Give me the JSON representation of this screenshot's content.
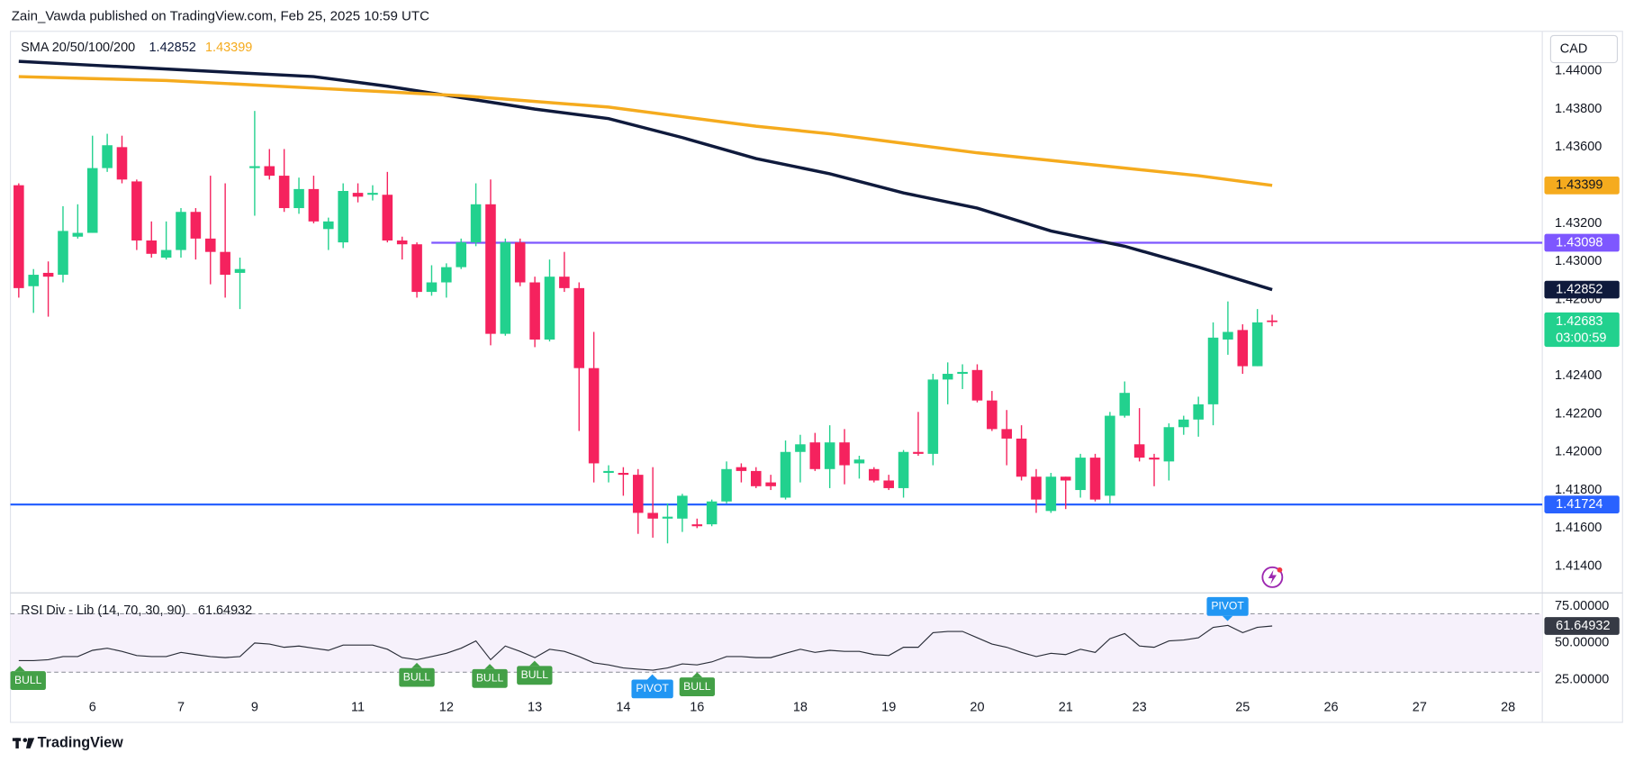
{
  "header": {
    "title": "Zain_Vawda published on TradingView.com, Feb 25, 2025 10:59 UTC",
    "brand": "TradingView"
  },
  "chart_data": [
    {
      "type": "candlestick",
      "currency": "CAD",
      "legend_title": "SMA 20/50/100/200",
      "countdown": "03:00:59",
      "up_color": "#22d18e",
      "down_color": "#f5225e",
      "categories": [
        null,
        null,
        null,
        null,
        null,
        "6",
        null,
        null,
        null,
        null,
        null,
        "7",
        null,
        null,
        null,
        null,
        "9",
        null,
        null,
        null,
        null,
        null,
        null,
        "11",
        null,
        null,
        null,
        null,
        null,
        "12",
        null,
        null,
        null,
        null,
        null,
        "13",
        null,
        null,
        null,
        null,
        null,
        "14",
        null,
        null,
        null,
        null,
        "16",
        null,
        null,
        null,
        null,
        null,
        null,
        "18",
        null,
        null,
        null,
        null,
        null,
        "19",
        null,
        null,
        null,
        null,
        null,
        "20",
        null,
        null,
        null,
        null,
        null,
        "21",
        null,
        null,
        null,
        null,
        "23",
        null,
        null,
        null,
        null,
        null,
        null,
        "25",
        null,
        null,
        null,
        null,
        null,
        "26",
        null,
        null,
        null,
        null,
        null,
        "27",
        null,
        null,
        null,
        null,
        null,
        "28"
      ],
      "open": [
        1.434,
        1.4287,
        1.4294,
        1.4293,
        1.4313,
        1.4315,
        1.4349,
        1.436,
        1.4342,
        1.4311,
        1.4302,
        1.4306,
        1.4326,
        1.4312,
        1.4305,
        1.4294,
        1.4349,
        1.435,
        1.4345,
        1.4328,
        1.4338,
        1.4317,
        1.431,
        1.4336,
        1.4335,
        1.4335,
        1.4311,
        1.4309,
        1.4284,
        1.4289,
        1.4297,
        1.431,
        1.433,
        1.4262,
        1.431,
        1.4289,
        1.4259,
        1.4292,
        1.4286,
        1.4244,
        1.4189,
        1.4189,
        1.4188,
        1.4168,
        1.4165,
        1.4165,
        1.4162,
        1.4162,
        1.4174,
        1.4192,
        1.419,
        1.4184,
        1.4176,
        1.42,
        1.4205,
        1.4191,
        1.4205,
        1.4194,
        1.4191,
        1.4185,
        1.4181,
        1.42,
        1.4199,
        1.4238,
        1.4241,
        1.4243,
        1.4227,
        1.4212,
        1.4207,
        1.4187,
        1.4169,
        1.4187,
        1.418,
        1.4197,
        1.4177,
        1.4219,
        1.4204,
        1.4197,
        1.4195,
        1.4213,
        1.4217,
        1.4225,
        1.4259,
        1.4264,
        1.4245,
        1.4269,
        null,
        null,
        null,
        null,
        null,
        null,
        null,
        null,
        null,
        null,
        null,
        null,
        null,
        null,
        null,
        null
      ],
      "high": [
        1.4341,
        1.4296,
        1.43,
        1.4329,
        1.433,
        1.4366,
        1.4367,
        1.4366,
        1.4343,
        1.4321,
        1.4321,
        1.4328,
        1.4328,
        1.4345,
        1.4341,
        1.4302,
        1.4379,
        1.4359,
        1.4359,
        1.4344,
        1.4345,
        1.4323,
        1.4341,
        1.4341,
        1.434,
        1.4347,
        1.4313,
        1.431,
        1.4298,
        1.4299,
        1.4312,
        1.4341,
        1.4343,
        1.4312,
        1.4312,
        1.4292,
        1.4301,
        1.4305,
        1.4289,
        1.4263,
        1.4193,
        1.4192,
        1.4191,
        1.4192,
        1.4173,
        1.4178,
        1.4165,
        1.4175,
        1.4195,
        1.4194,
        1.4192,
        1.4188,
        1.4206,
        1.4209,
        1.421,
        1.4214,
        1.4212,
        1.4198,
        1.4192,
        1.4188,
        1.4201,
        1.4221,
        1.4241,
        1.4247,
        1.4246,
        1.4246,
        1.4232,
        1.4222,
        1.4214,
        1.4191,
        1.4189,
        1.4187,
        1.4199,
        1.4199,
        1.4221,
        1.4237,
        1.4223,
        1.4199,
        1.4215,
        1.4219,
        1.4229,
        1.4268,
        1.4279,
        1.4267,
        1.4275,
        1.4272,
        null,
        null,
        null,
        null,
        null,
        null,
        null,
        null,
        null,
        null,
        null,
        null,
        null,
        null,
        null,
        null
      ],
      "low": [
        1.4281,
        1.4273,
        1.4271,
        1.4289,
        1.4312,
        1.4315,
        1.4347,
        1.4341,
        1.4306,
        1.4302,
        1.4301,
        1.4302,
        1.4301,
        1.4288,
        1.4281,
        1.4275,
        1.4324,
        1.4343,
        1.4326,
        1.4325,
        1.432,
        1.4306,
        1.4307,
        1.4331,
        1.4332,
        1.431,
        1.4301,
        1.4281,
        1.4282,
        1.4281,
        1.4296,
        1.4308,
        1.4256,
        1.4261,
        1.4287,
        1.4255,
        1.4258,
        1.4284,
        1.4211,
        1.4184,
        1.4184,
        1.4177,
        1.4157,
        1.4155,
        1.4152,
        1.4158,
        1.416,
        1.4161,
        1.4173,
        1.4184,
        1.4181,
        1.418,
        1.4175,
        1.4184,
        1.419,
        1.4181,
        1.4183,
        1.4186,
        1.4184,
        1.418,
        1.4176,
        1.4198,
        1.4193,
        1.4225,
        1.4233,
        1.4226,
        1.4211,
        1.4193,
        1.4185,
        1.4168,
        1.4168,
        1.417,
        1.4176,
        1.4174,
        1.4173,
        1.4218,
        1.4195,
        1.4182,
        1.4185,
        1.4209,
        1.4208,
        1.4214,
        1.4251,
        1.4241,
        1.4245,
        1.4266,
        null,
        null,
        null,
        null,
        null,
        null,
        null,
        null,
        null,
        null,
        null,
        null,
        null,
        null,
        null,
        null
      ],
      "close": [
        1.4286,
        1.4293,
        1.4292,
        1.4316,
        1.4315,
        1.4349,
        1.4361,
        1.4343,
        1.4311,
        1.4304,
        1.4306,
        1.4326,
        1.4312,
        1.4305,
        1.4293,
        1.4296,
        1.435,
        1.4345,
        1.4328,
        1.4338,
        1.4321,
        1.4321,
        1.4337,
        1.4334,
        1.4336,
        1.4311,
        1.4309,
        1.4284,
        1.4289,
        1.4297,
        1.431,
        1.433,
        1.4262,
        1.431,
        1.4289,
        1.4259,
        1.4292,
        1.4286,
        1.4244,
        1.4194,
        1.419,
        1.4188,
        1.4168,
        1.4165,
        1.4166,
        1.4177,
        1.4161,
        1.4174,
        1.4191,
        1.419,
        1.4182,
        1.4182,
        1.42,
        1.4204,
        1.4191,
        1.4205,
        1.4193,
        1.4196,
        1.4185,
        1.4181,
        1.42,
        1.4199,
        1.4238,
        1.4241,
        1.4242,
        1.4227,
        1.4212,
        1.4207,
        1.4187,
        1.4175,
        1.4187,
        1.4185,
        1.4197,
        1.4175,
        1.4219,
        1.4231,
        1.4197,
        1.4196,
        1.4213,
        1.4217,
        1.4225,
        1.426,
        1.4263,
        1.4245,
        1.4268,
        1.42683,
        null,
        null,
        null,
        null,
        null,
        null,
        null,
        null,
        null,
        null,
        null,
        null,
        null,
        null,
        null,
        null
      ],
      "series": [
        {
          "color": "#0f1a3c",
          "x": [
            0,
            5,
            10,
            15,
            20,
            25,
            30,
            35,
            40,
            45,
            50,
            55,
            60,
            65,
            70,
            75,
            80,
            85
          ],
          "values": [
            1.4405,
            1.4403,
            1.4401,
            1.4399,
            1.4397,
            1.4392,
            1.4386,
            1.438,
            1.4375,
            1.4365,
            1.4354,
            1.4346,
            1.4336,
            1.4328,
            1.4316,
            1.4308,
            1.4297,
            1.42852
          ]
        },
        {
          "color": "#f5ab1e",
          "x": [
            0,
            5,
            10,
            15,
            20,
            25,
            30,
            35,
            40,
            45,
            50,
            55,
            60,
            65,
            70,
            75,
            80,
            85
          ],
          "values": [
            1.4397,
            1.4396,
            1.4395,
            1.4393,
            1.4391,
            1.4389,
            1.4387,
            1.4384,
            1.4381,
            1.4376,
            1.4371,
            1.4367,
            1.4362,
            1.4357,
            1.4353,
            1.4349,
            1.4345,
            1.43399
          ]
        }
      ],
      "hlines": [
        {
          "value": 1.43098,
          "color": "#7e57ff"
        },
        {
          "value": 1.41724,
          "color": "#2962ff"
        }
      ],
      "ylim": [
        1.4126,
        1.44208
      ],
      "yticks": [
        {
          "value": 1.414,
          "label": "1.41400"
        },
        {
          "value": 1.416,
          "label": "1.41600"
        },
        {
          "value": 1.418,
          "label": "1.41800"
        },
        {
          "value": 1.42,
          "label": "1.42000"
        },
        {
          "value": 1.422,
          "label": "1.42200"
        },
        {
          "value": 1.424,
          "label": "1.42400"
        },
        {
          "value": 1.428,
          "label": "1.42800"
        },
        {
          "value": 1.43,
          "label": "1.43000"
        },
        {
          "value": 1.432,
          "label": "1.43200"
        },
        {
          "value": 1.436,
          "label": "1.43600"
        },
        {
          "value": 1.438,
          "label": "1.43800"
        },
        {
          "value": 1.44,
          "label": "1.44000"
        }
      ]
    },
    {
      "type": "line",
      "title": "RSI Div - Lib (14, 70, 30, 90)",
      "bands": [
        30,
        70
      ],
      "band_color": "#f6f1fb",
      "annotations": [
        "BULL",
        "BULL",
        "BULL",
        "BULL",
        "PIVOT",
        "BULL",
        "PIVOT"
      ],
      "series": [
        {
          "color": "#2a2e39",
          "values": [
            37.9,
            37.9,
            38.6,
            40.7,
            40.7,
            45.0,
            46.4,
            44.3,
            41.4,
            40.7,
            40.7,
            43.6,
            42.1,
            40.7,
            40.0,
            40.7,
            50.0,
            49.3,
            47.1,
            47.9,
            46.4,
            45.0,
            48.6,
            48.6,
            48.6,
            45.7,
            40.0,
            38.6,
            40.7,
            42.9,
            46.4,
            51.4,
            38.6,
            47.9,
            44.3,
            40.0,
            45.7,
            44.3,
            40.7,
            36.4,
            35.0,
            32.9,
            32.1,
            31.4,
            32.9,
            35.7,
            35.0,
            37.1,
            40.7,
            40.7,
            40.0,
            40.0,
            42.9,
            45.7,
            43.6,
            45.0,
            44.3,
            44.3,
            42.1,
            41.4,
            47.1,
            47.1,
            57.1,
            57.9,
            57.9,
            53.6,
            49.3,
            47.1,
            43.6,
            40.7,
            42.9,
            42.1,
            45.7,
            43.6,
            52.9,
            56.4,
            47.9,
            47.1,
            51.4,
            52.1,
            53.6,
            60.7,
            62.1,
            57.1,
            60.7,
            61.64932,
            null,
            null,
            null,
            null,
            null,
            null,
            null,
            null,
            null,
            null,
            null,
            null,
            null,
            null,
            null,
            null
          ]
        }
      ],
      "ylim": [
        -4.3,
        84.3
      ],
      "yticks": [
        {
          "value": 75,
          "label": "75.00000"
        },
        {
          "value": 50,
          "label": "50.00000"
        },
        {
          "value": 25,
          "label": "25.00000"
        }
      ]
    }
  ]
}
